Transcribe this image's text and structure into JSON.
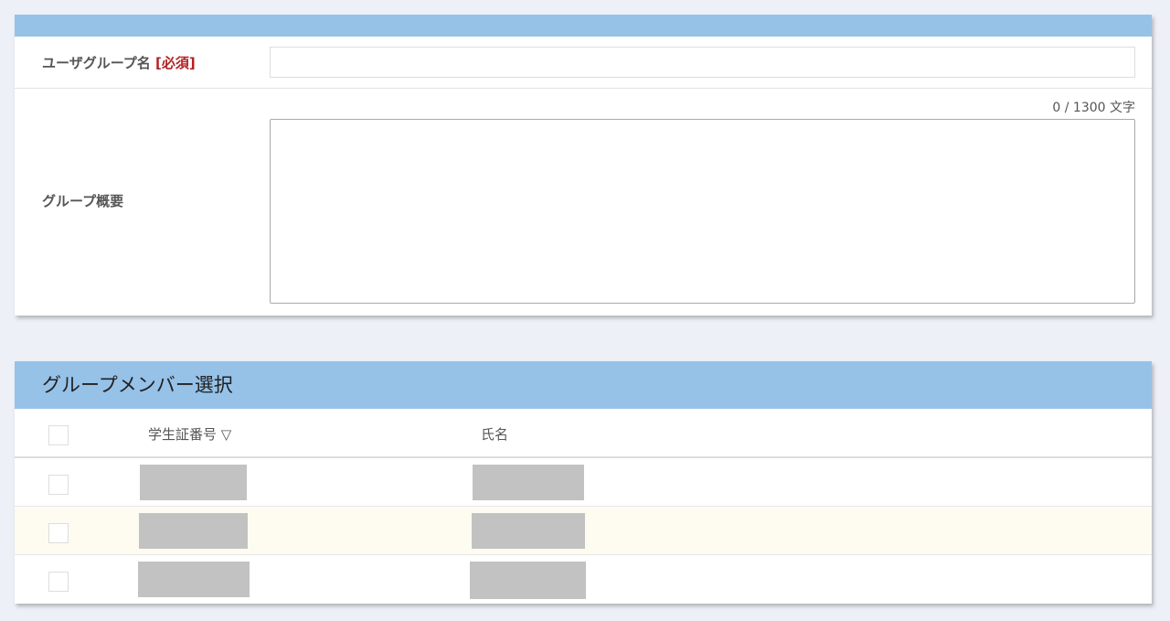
{
  "form": {
    "group_name_label": "ユーザグループ名",
    "required_tag": "[必須]",
    "group_name_value": "",
    "summary_label": "グループ概要",
    "summary_counter": "0 / 1300 文字",
    "summary_value": ""
  },
  "members": {
    "title": "グループメンバー選択",
    "columns": {
      "student_id": "学生証番号 ▽",
      "name": "氏名"
    },
    "rows": [
      {
        "checked": false,
        "redacted": true
      },
      {
        "checked": false,
        "redacted": true,
        "highlighted": true
      },
      {
        "checked": false,
        "redacted": true
      }
    ]
  },
  "colors": {
    "header": "#96c2e8",
    "required": "#b22222",
    "highlight_row": "#fefcf1"
  }
}
